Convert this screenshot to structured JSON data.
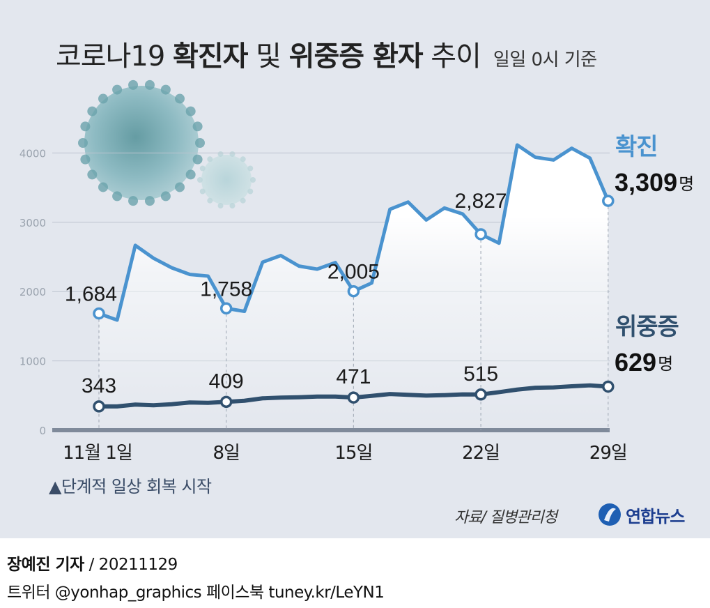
{
  "title": {
    "part1": "코로나19 ",
    "part2": "확진자",
    "part3": " 및 ",
    "part4": "위중증 환자",
    "part5": " 추이",
    "subtitle": "일일 0시 기준"
  },
  "chart_data": {
    "type": "line",
    "x": [
      "11/1",
      "11/2",
      "11/3",
      "11/4",
      "11/5",
      "11/6",
      "11/7",
      "11/8",
      "11/9",
      "11/10",
      "11/11",
      "11/12",
      "11/13",
      "11/14",
      "11/15",
      "11/16",
      "11/17",
      "11/18",
      "11/19",
      "11/20",
      "11/21",
      "11/22",
      "11/23",
      "11/24",
      "11/25",
      "11/26",
      "11/27",
      "11/28",
      "11/29"
    ],
    "x_tick_labels": [
      {
        "index": 0,
        "label": "11월 1일"
      },
      {
        "index": 7,
        "label": "8일"
      },
      {
        "index": 14,
        "label": "15일"
      },
      {
        "index": 21,
        "label": "22일"
      },
      {
        "index": 28,
        "label": "29일"
      }
    ],
    "ylim": [
      0,
      4500
    ],
    "yticks": [
      0,
      1000,
      2000,
      3000,
      4000
    ],
    "grid": true,
    "series": [
      {
        "name": "확진",
        "color": "#4a93cf",
        "values": [
          1684,
          1589,
          2667,
          2482,
          2344,
          2247,
          2224,
          1758,
          1715,
          2425,
          2520,
          2368,
          2324,
          2419,
          2005,
          2124,
          3187,
          3292,
          3034,
          3206,
          3120,
          2827,
          2699,
          4115,
          3938,
          3899,
          4068,
          3925,
          3309
        ],
        "labels": [
          {
            "index": 0,
            "text": "1,684"
          },
          {
            "index": 7,
            "text": "1,758"
          },
          {
            "index": 14,
            "text": "2,005"
          },
          {
            "index": 21,
            "text": "2,827"
          }
        ],
        "end_label": {
          "name": "확진",
          "value": "3,309",
          "unit": "명"
        }
      },
      {
        "name": "위중증",
        "color": "#30506e",
        "values": [
          343,
          343,
          370,
          360,
          375,
          400,
          395,
          409,
          425,
          460,
          470,
          475,
          485,
          485,
          471,
          495,
          522,
          510,
          499,
          506,
          517,
          515,
          549,
          586,
          612,
          617,
          634,
          647,
          629
        ],
        "labels": [
          {
            "index": 0,
            "text": "343"
          },
          {
            "index": 7,
            "text": "409"
          },
          {
            "index": 14,
            "text": "471"
          },
          {
            "index": 21,
            "text": "515"
          }
        ],
        "end_label": {
          "name": "위중증",
          "value": "629",
          "unit": "명"
        }
      }
    ]
  },
  "note": "▲단계적 일상 회복 시작",
  "source": "자료/ 질병관리청",
  "logo_text": "연합뉴스",
  "byline": {
    "line1_bold": "장예진 기자",
    "line1_rest": " / 20211129",
    "line2": "트위터 @yonhap_graphics  페이스북 tuney.kr/LeYN1"
  }
}
